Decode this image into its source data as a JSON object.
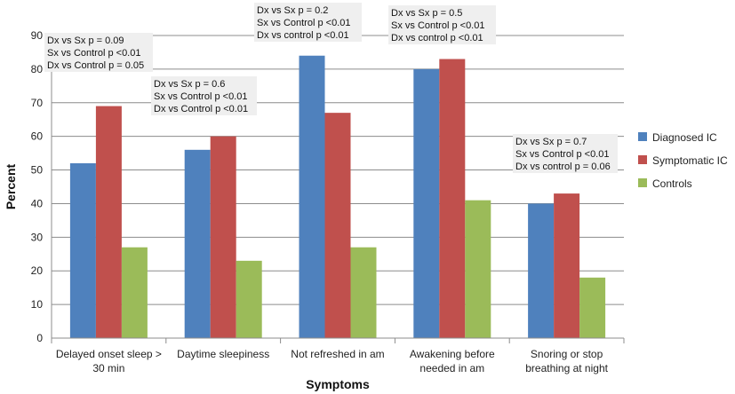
{
  "chart_data": {
    "type": "bar",
    "title": "",
    "xlabel": "Symptoms",
    "ylabel": "Percent",
    "ylim": [
      0,
      90
    ],
    "yticks": [
      0,
      10,
      20,
      30,
      40,
      50,
      60,
      70,
      80,
      90
    ],
    "grid": true,
    "legend_position": "right",
    "categories": [
      [
        "Delayed onset sleep >",
        "30 min"
      ],
      [
        "Daytime sleepiness"
      ],
      [
        "Not refreshed in am"
      ],
      [
        "Awakening before",
        "needed in am"
      ],
      [
        "Snoring or stop",
        "breathing at night"
      ]
    ],
    "series": [
      {
        "name": "Diagnosed IC",
        "color": "#4f81bd",
        "values": [
          52,
          56,
          84,
          80,
          40
        ]
      },
      {
        "name": "Symptomatic IC",
        "color": "#c0504d",
        "values": [
          69,
          60,
          67,
          83,
          43
        ]
      },
      {
        "name": "Controls",
        "color": "#9bbb59",
        "values": [
          27,
          23,
          27,
          41,
          18
        ]
      }
    ],
    "annotations": [
      {
        "category": 0,
        "lines": [
          "Dx vs Sx p = 0.09",
          "Sx vs Control p <0.01",
          "Dx vs Control p = 0.05"
        ]
      },
      {
        "category": 1,
        "lines": [
          "Dx vs Sx p = 0.6",
          "Sx vs Control p <0.01",
          "Dx vs Control p <0.01"
        ]
      },
      {
        "category": 2,
        "lines": [
          "Dx vs Sx p = 0.2",
          "Sx vs Control p <0.01",
          "Dx vs control p <0.01"
        ]
      },
      {
        "category": 3,
        "lines": [
          "Dx vs Sx p = 0.5",
          "Sx vs Control p <0.01",
          "Dx vs control p <0.01"
        ]
      },
      {
        "category": 4,
        "lines": [
          "Dx vs Sx p = 0.7",
          "Sx vs Control p <0.01",
          "Dx vs control p = 0.06"
        ]
      }
    ]
  }
}
